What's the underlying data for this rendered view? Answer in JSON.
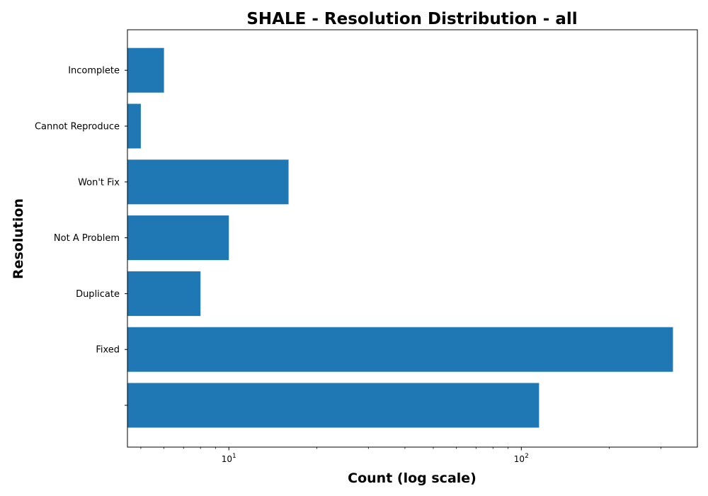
{
  "chart_data": {
    "type": "bar",
    "orientation": "horizontal",
    "title": "SHALE - Resolution Distribution - all",
    "xlabel": "Count (log scale)",
    "ylabel": "Resolution",
    "x_scale": "log",
    "xlim": [
      4.5,
      400
    ],
    "x_major_ticks": [
      {
        "base": "10",
        "exp": "1",
        "value": 10
      },
      {
        "base": "10",
        "exp": "2",
        "value": 100
      }
    ],
    "categories": [
      "",
      "Fixed",
      "Duplicate",
      "Not A Problem",
      "Won't Fix",
      "Cannot Reproduce",
      "Incomplete"
    ],
    "values": [
      115,
      330,
      8,
      10,
      16,
      5,
      6
    ],
    "bar_color": "#1f77b4",
    "grid": false,
    "legend": "none"
  }
}
